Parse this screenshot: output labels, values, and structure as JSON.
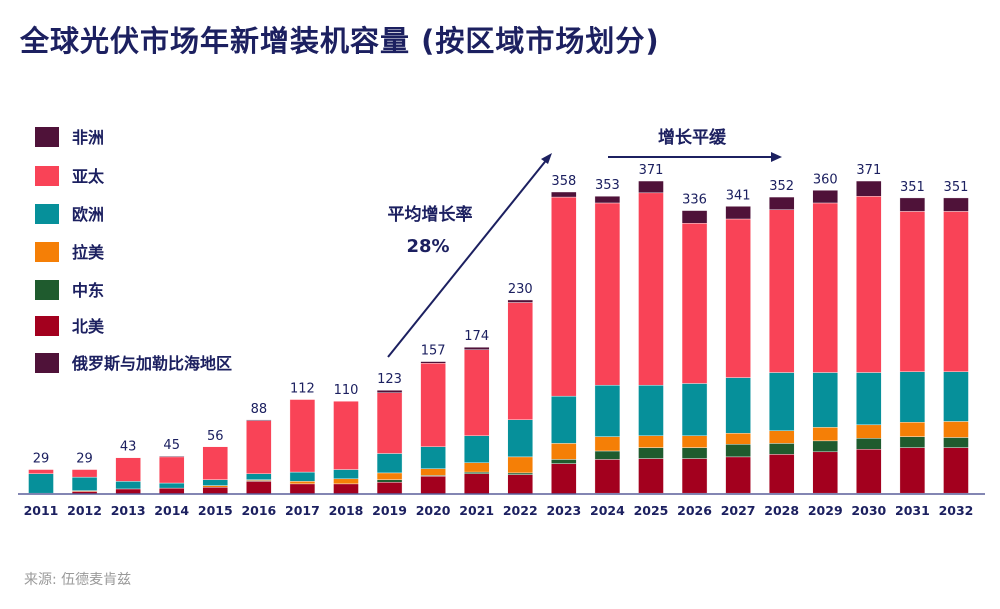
{
  "title": "全球光伏市场年新增装机容量 (按区域市场划分)",
  "source": "来源: 伍德麦肯兹",
  "annotations": {
    "growth_label": "平均增长率",
    "growth_value": "28%",
    "plateau_label": "增长平缓"
  },
  "chart_data": {
    "type": "bar",
    "stacked": true,
    "title": "全球光伏市场年新增装机容量 (按区域市场划分)",
    "xlabel": "",
    "ylabel": "",
    "ylim": [
      0,
      380
    ],
    "grid": false,
    "legend_position": "left",
    "categories": [
      "2011",
      "2012",
      "2013",
      "2014",
      "2015",
      "2016",
      "2017",
      "2018",
      "2019",
      "2020",
      "2021",
      "2022",
      "2023",
      "2024",
      "2025",
      "2026",
      "2027",
      "2028",
      "2029",
      "2030",
      "2031",
      "2032"
    ],
    "totals": [
      29,
      29,
      43,
      45,
      56,
      88,
      112,
      110,
      123,
      157,
      174,
      230,
      358,
      353,
      371,
      336,
      341,
      352,
      360,
      371,
      351,
      351
    ],
    "series": [
      {
        "name": "俄罗斯与加勒比海地区",
        "color": "#4f1239",
        "values": [
          0,
          0,
          0,
          0,
          0,
          0,
          0,
          0,
          0,
          0,
          0,
          0,
          0,
          1,
          1,
          1,
          1,
          1,
          1,
          1,
          1,
          1
        ]
      },
      {
        "name": "北美",
        "color": "#a3001e",
        "values": [
          1,
          3,
          6,
          7,
          8,
          15,
          12,
          12,
          14,
          21,
          24,
          23,
          36,
          40,
          41,
          41,
          43,
          46,
          49,
          52,
          54,
          54
        ]
      },
      {
        "name": "中东",
        "color": "#1f5b2e",
        "values": [
          0,
          0,
          0,
          0,
          0,
          1,
          0,
          0,
          3,
          1,
          2,
          2,
          5,
          10,
          13,
          13,
          15,
          13,
          13,
          13,
          13,
          12
        ]
      },
      {
        "name": "拉美",
        "color": "#f57f06",
        "values": [
          0,
          1,
          0,
          0,
          2,
          1,
          3,
          6,
          8,
          8,
          11,
          19,
          19,
          17,
          14,
          14,
          13,
          15,
          16,
          16,
          17,
          19
        ]
      },
      {
        "name": "欧洲",
        "color": "#06909a",
        "values": [
          23,
          16,
          9,
          6,
          7,
          7,
          11,
          11,
          23,
          26,
          32,
          44,
          56,
          61,
          60,
          62,
          66,
          69,
          65,
          62,
          60,
          59
        ]
      },
      {
        "name": "亚太",
        "color": "#f94357",
        "values": [
          5,
          9,
          28,
          31,
          39,
          63,
          86,
          81,
          72,
          99,
          102,
          139,
          236,
          216,
          228,
          190,
          188,
          193,
          201,
          209,
          190,
          190
        ]
      },
      {
        "name": "非洲",
        "color": "#4f1239",
        "values": [
          0,
          0,
          0,
          1,
          0,
          1,
          0,
          0,
          3,
          2,
          3,
          3,
          6,
          8,
          14,
          15,
          15,
          15,
          15,
          18,
          16,
          16
        ]
      }
    ],
    "legend_order": [
      "非洲",
      "亚太",
      "欧洲",
      "拉美",
      "中东",
      "北美",
      "俄罗斯与加勒比海地区"
    ]
  }
}
